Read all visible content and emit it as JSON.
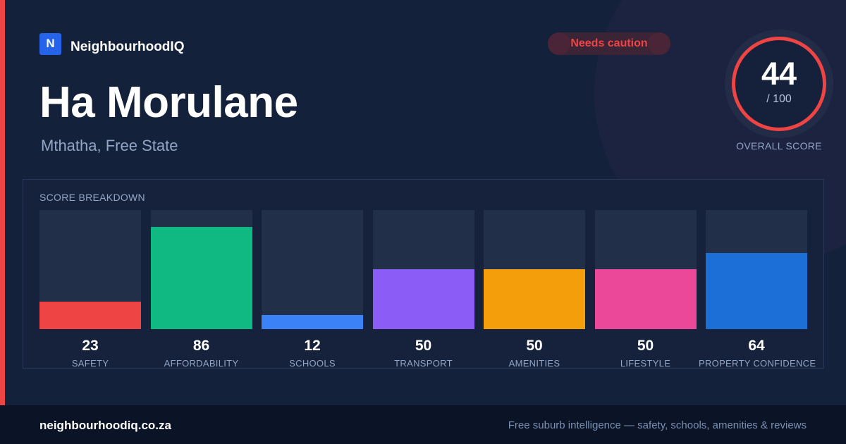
{
  "brand": {
    "logo_letter": "N",
    "name": "NeighbourhoodIQ",
    "color": "#2563eb"
  },
  "suburb": {
    "name": "Ha Morulane",
    "location": "Mthatha, Free State"
  },
  "status": {
    "label": "Needs caution",
    "color": "#ef4444"
  },
  "overall": {
    "score": "44",
    "max": "/ 100",
    "caption": "OVERALL SCORE",
    "ring_color": "#ef4444"
  },
  "breakdown": {
    "title": "SCORE BREAKDOWN",
    "scale_max": 100,
    "items": [
      {
        "label": "SAFETY",
        "value": 23,
        "value_text": "23",
        "color": "#ef4444"
      },
      {
        "label": "AFFORDABILITY",
        "value": 86,
        "value_text": "86",
        "color": "#10b981"
      },
      {
        "label": "SCHOOLS",
        "value": 12,
        "value_text": "12",
        "color": "#3b82f6"
      },
      {
        "label": "TRANSPORT",
        "value": 50,
        "value_text": "50",
        "color": "#8b5cf6"
      },
      {
        "label": "AMENITIES",
        "value": 50,
        "value_text": "50",
        "color": "#f59e0b"
      },
      {
        "label": "LIFESTYLE",
        "value": 50,
        "value_text": "50",
        "color": "#ec4899"
      },
      {
        "label": "PROPERTY CONFIDENCE",
        "value": 64,
        "value_text": "64",
        "color": "#1d6fd8"
      }
    ]
  },
  "footer": {
    "url": "neighbourhoodiq.co.za",
    "tagline": "Free suburb intelligence — safety, schools, amenities & reviews"
  }
}
